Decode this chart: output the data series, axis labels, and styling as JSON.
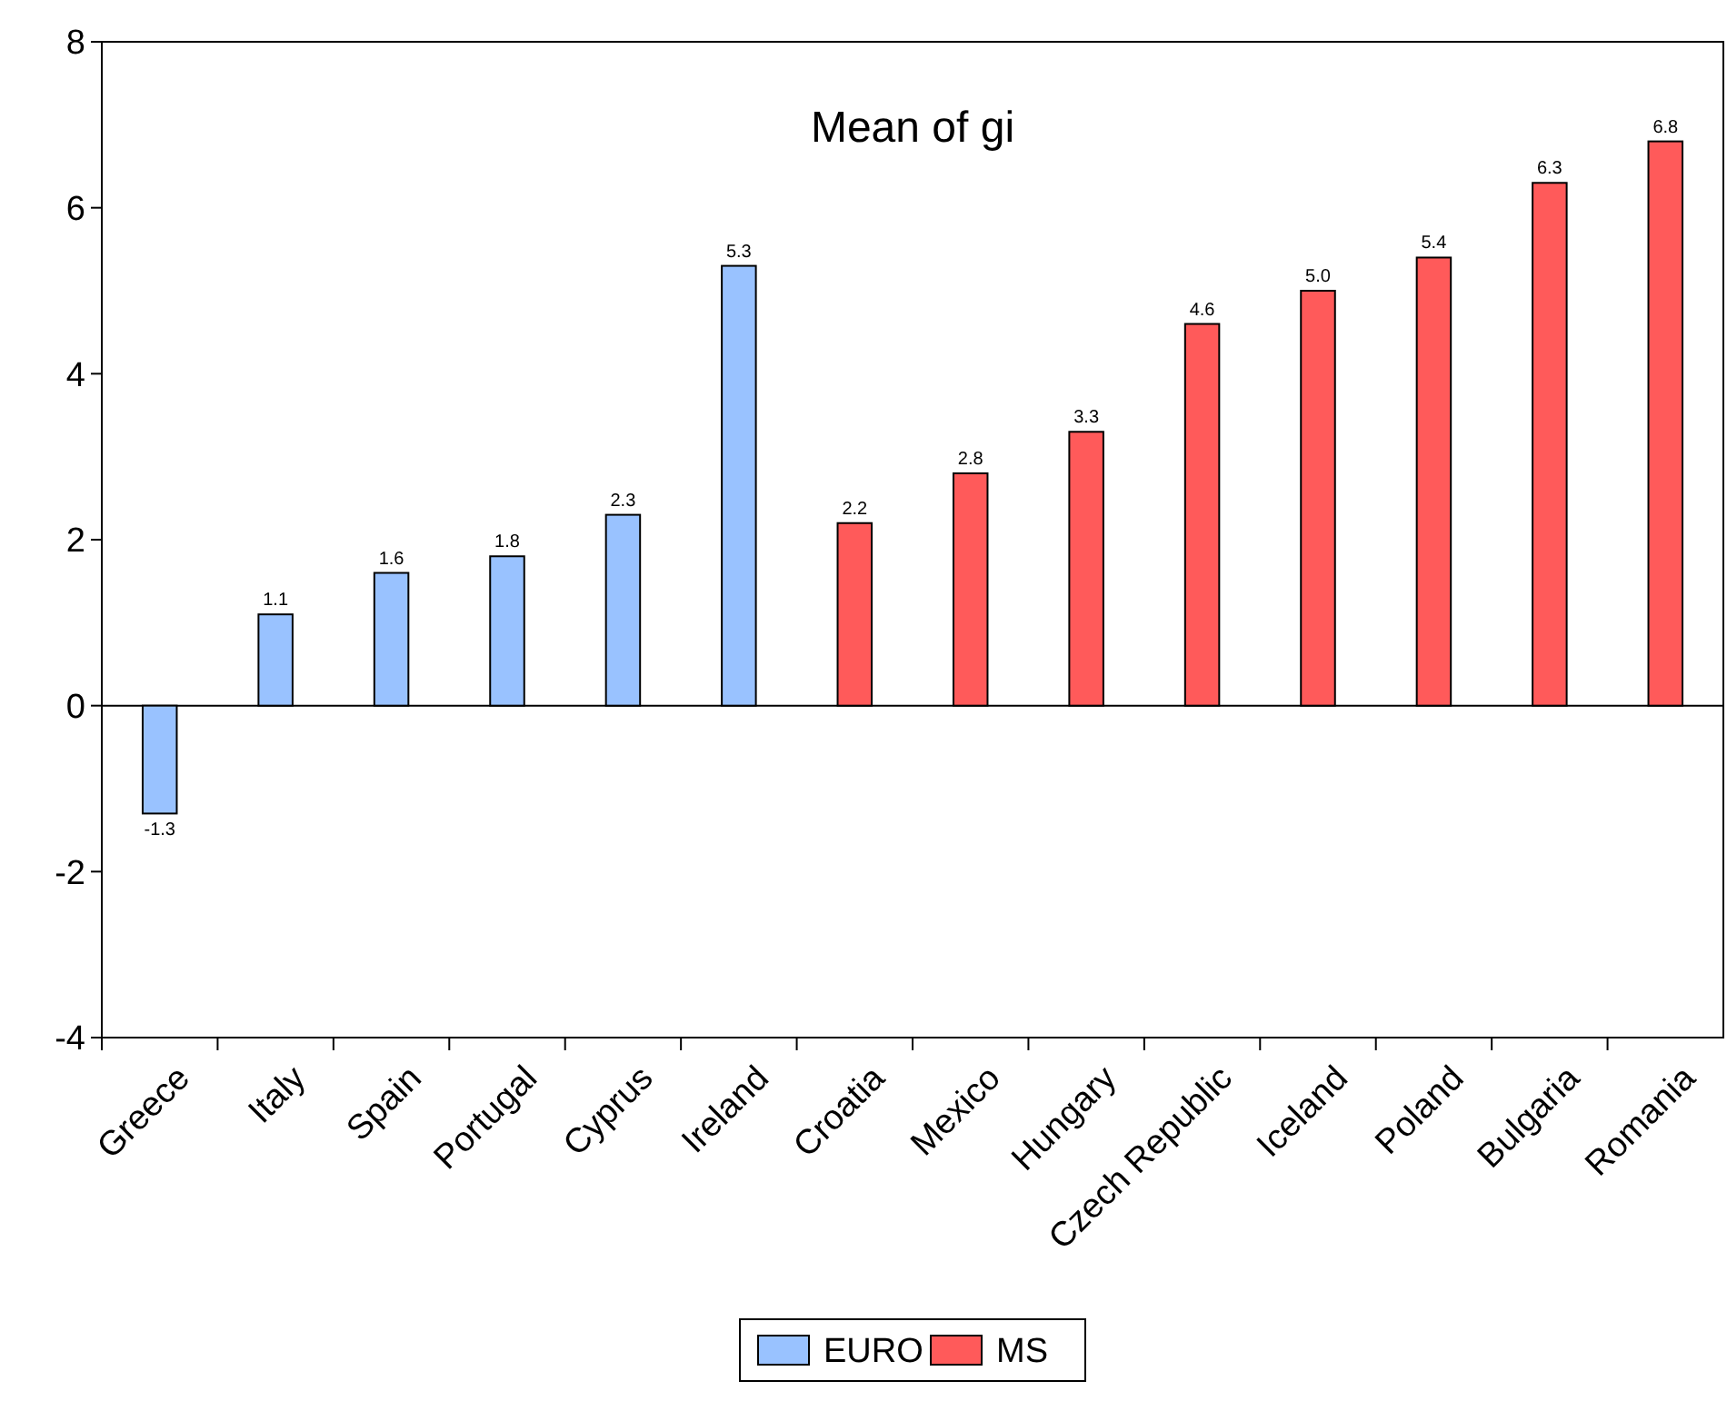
{
  "chart_data": {
    "type": "bar",
    "title": "Mean of gi",
    "categories": [
      "Greece",
      "Italy",
      "Spain",
      "Portugal",
      "Cyprus",
      "Ireland",
      "Croatia",
      "Mexico",
      "Hungary",
      "Czech Republic",
      "Iceland",
      "Poland",
      "Bulgaria",
      "Romania"
    ],
    "series": [
      {
        "name": "EURO",
        "color": "#99c2ff",
        "values": [
          -1.3,
          1.1,
          1.6,
          1.8,
          2.3,
          5.3,
          null,
          null,
          null,
          null,
          null,
          null,
          null,
          null
        ],
        "value_labels": [
          "-1.3",
          "1.1",
          "1.6",
          "1.8",
          "2.3",
          "5.3",
          null,
          null,
          null,
          null,
          null,
          null,
          null,
          null
        ]
      },
      {
        "name": "MS",
        "color": "#ff5a5a",
        "values": [
          null,
          null,
          null,
          null,
          null,
          null,
          2.2,
          2.8,
          3.3,
          4.6,
          5.0,
          5.4,
          6.3,
          6.8
        ],
        "value_labels": [
          null,
          null,
          null,
          null,
          null,
          null,
          "2.2",
          "2.8",
          "3.3",
          "4.6",
          "5.0",
          "5.4",
          "6.3",
          "6.8"
        ]
      }
    ],
    "ylim": [
      -4,
      8
    ],
    "yticks": [
      -4,
      -2,
      0,
      2,
      4,
      6,
      8
    ],
    "legend": "bottom"
  }
}
